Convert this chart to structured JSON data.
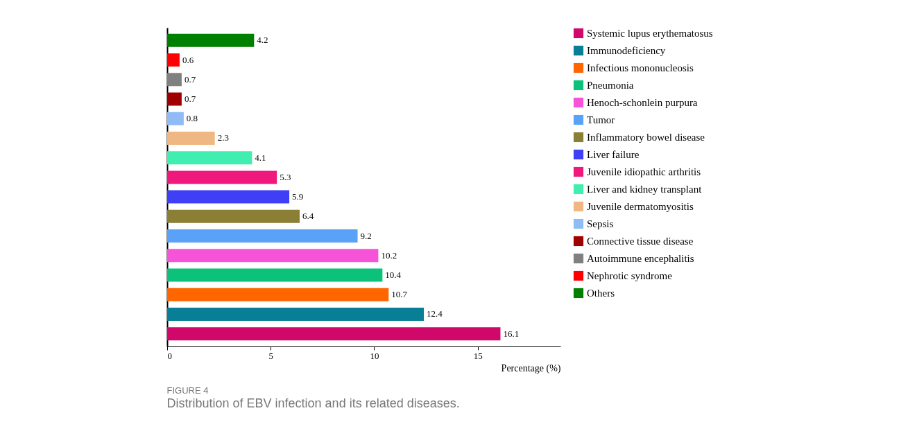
{
  "chart_data": {
    "type": "bar",
    "orientation": "horizontal",
    "stacked": true,
    "categories": [
      null,
      null,
      null,
      null,
      null,
      null,
      null,
      null,
      null,
      null,
      null,
      null,
      null,
      null,
      null,
      null
    ],
    "series": [
      {
        "name": "Systemic lupus erythematosus",
        "color": "#d0086a",
        "values": [
          null,
          null,
          null,
          null,
          null,
          null,
          null,
          null,
          null,
          null,
          null,
          null,
          null,
          null,
          null,
          16.1
        ]
      },
      {
        "name": "Immunodeficiency",
        "color": "#087f96",
        "values": [
          null,
          null,
          null,
          null,
          null,
          null,
          null,
          null,
          null,
          null,
          null,
          null,
          null,
          null,
          12.4,
          null
        ]
      },
      {
        "name": "Infectious mononucleosis",
        "color": "#ff6600",
        "values": [
          null,
          null,
          null,
          null,
          null,
          null,
          null,
          null,
          null,
          null,
          null,
          null,
          null,
          10.7,
          null,
          null
        ]
      },
      {
        "name": "Pneumonia",
        "color": "#0cc27a",
        "values": [
          null,
          null,
          null,
          null,
          null,
          null,
          null,
          null,
          null,
          null,
          null,
          null,
          10.4,
          null,
          null,
          null
        ]
      },
      {
        "name": "Henoch-schonlein purpura",
        "color": "#f653d8",
        "values": [
          null,
          null,
          null,
          null,
          null,
          null,
          null,
          null,
          null,
          null,
          null,
          10.2,
          null,
          null,
          null,
          null
        ]
      },
      {
        "name": "Tumor",
        "color": "#5aa2f7",
        "values": [
          null,
          null,
          null,
          null,
          null,
          null,
          null,
          null,
          null,
          null,
          9.2,
          null,
          null,
          null,
          null,
          null
        ]
      },
      {
        "name": "Inflammatory bowel disease",
        "color": "#8b7e35",
        "values": [
          null,
          null,
          null,
          null,
          null,
          null,
          null,
          null,
          null,
          6.4,
          null,
          null,
          null,
          null,
          null,
          null
        ]
      },
      {
        "name": "Liver failure",
        "color": "#3f3ff5",
        "values": [
          null,
          null,
          null,
          null,
          null,
          null,
          null,
          null,
          5.9,
          null,
          null,
          null,
          null,
          null,
          null,
          null
        ]
      },
      {
        "name": "Juvenile idiopathic arthritis",
        "color": "#f0177d",
        "values": [
          null,
          null,
          null,
          null,
          null,
          null,
          null,
          5.3,
          null,
          null,
          null,
          null,
          null,
          null,
          null,
          null
        ]
      },
      {
        "name": "Liver and kidney transplant",
        "color": "#40efb0",
        "values": [
          null,
          null,
          null,
          null,
          null,
          null,
          4.1,
          null,
          null,
          null,
          null,
          null,
          null,
          null,
          null,
          null
        ]
      },
      {
        "name": "Juvenile dermatomyositis",
        "color": "#efb882",
        "values": [
          null,
          null,
          null,
          null,
          null,
          2.3,
          null,
          null,
          null,
          null,
          null,
          null,
          null,
          null,
          null,
          null
        ]
      },
      {
        "name": "Sepsis",
        "color": "#8fbcf5",
        "values": [
          null,
          null,
          null,
          null,
          0.8,
          null,
          null,
          null,
          null,
          null,
          null,
          null,
          null,
          null,
          null,
          null
        ]
      },
      {
        "name": "Connective tissue disease",
        "color": "#a00000",
        "values": [
          null,
          null,
          null,
          0.7,
          null,
          null,
          null,
          null,
          null,
          null,
          null,
          null,
          null,
          null,
          null,
          null
        ]
      },
      {
        "name": "Autoimmune encephalitis",
        "color": "#808080",
        "values": [
          null,
          null,
          0.7,
          null,
          null,
          null,
          null,
          null,
          null,
          null,
          null,
          null,
          null,
          null,
          null,
          null
        ]
      },
      {
        "name": "Nephrotic syndrome",
        "color": "#ff0000",
        "values": [
          null,
          0.6,
          null,
          null,
          null,
          null,
          null,
          null,
          null,
          null,
          null,
          null,
          null,
          null,
          null,
          null
        ]
      },
      {
        "name": "Others",
        "color": "#008000",
        "values": [
          4.2,
          null,
          null,
          null,
          null,
          null,
          null,
          null,
          null,
          null,
          null,
          null,
          null,
          null,
          null,
          null
        ]
      }
    ],
    "xlim": [
      0,
      19
    ],
    "xticks": [
      0,
      5,
      10,
      15
    ],
    "xlabel": "Percentage (%)",
    "data_labels": true,
    "legend": "right",
    "grid": false,
    "tick_labels": "x",
    "annotations": [
      "FIGURE 4",
      "Distribution of EBV infection and its related diseases."
    ]
  }
}
